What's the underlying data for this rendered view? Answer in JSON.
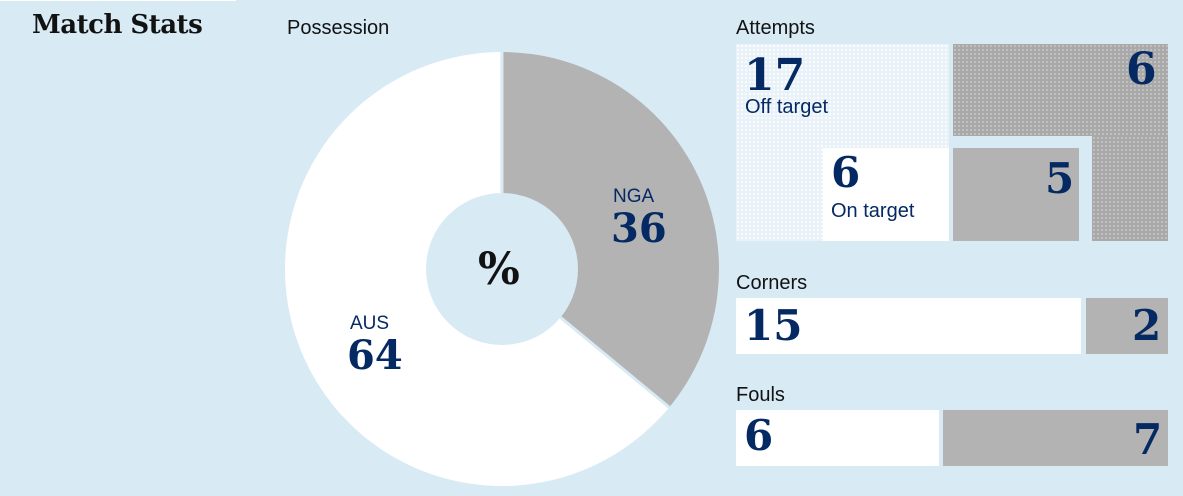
{
  "header": {
    "title": "Match Stats"
  },
  "colors": {
    "home": "#ffffff",
    "away": "#b3b3b3",
    "accent": "#052962",
    "background": "#d8eaf4"
  },
  "chart_data": [
    {
      "type": "pie",
      "title": "Possession",
      "center_label": "%",
      "slices": [
        {
          "name": "AUS",
          "value": 64
        },
        {
          "name": "NGA",
          "value": 36
        }
      ]
    },
    {
      "type": "bar",
      "title": "Attempts",
      "series": [
        {
          "name": "AUS",
          "total": 17,
          "on_target": 6
        },
        {
          "name": "NGA",
          "total": 6,
          "on_target": 5
        }
      ],
      "labels": {
        "off_target": "Off target",
        "on_target": "On target"
      }
    },
    {
      "type": "bar",
      "title": "Corners",
      "series": [
        {
          "name": "AUS",
          "value": 15
        },
        {
          "name": "NGA",
          "value": 2
        }
      ]
    },
    {
      "type": "bar",
      "title": "Fouls",
      "series": [
        {
          "name": "AUS",
          "value": 6
        },
        {
          "name": "NGA",
          "value": 7
        }
      ]
    }
  ]
}
